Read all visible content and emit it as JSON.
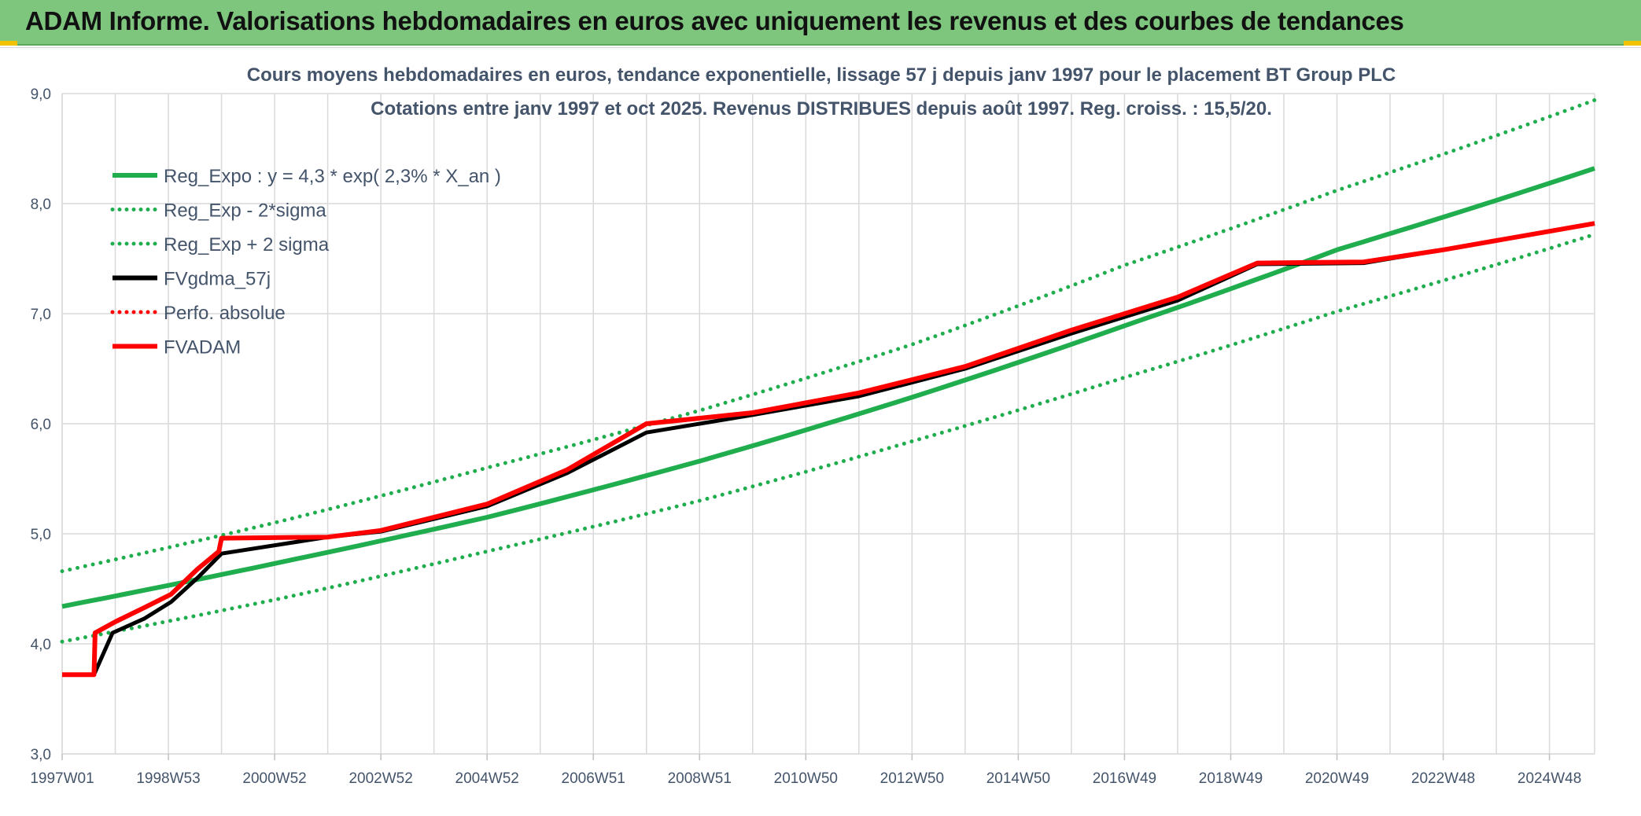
{
  "banner": {
    "title": "ADAM Informe. Valorisations hebdomadaires en euros avec uniquement les revenus et des courbes de tendances"
  },
  "colors": {
    "banner": "#7ec57e",
    "trend": "#1fad4e",
    "price": "#000000",
    "adam": "#ff0000",
    "grid": "#d9d9d9"
  },
  "chart_data": {
    "type": "line",
    "title": "Cours moyens hebdomadaires en euros, tendance exponentielle, lissage 57 j depuis janv 1997 pour le placement BT Group PLC",
    "subtitle": "Cotations entre janv 1997 et oct 2025. Revenus DISTRIBUES depuis août 1997. Reg. croiss. : 15,5/20.",
    "xlabel": "",
    "ylabel": "",
    "ylim": [
      3.0,
      9.0
    ],
    "yticks": [
      "3,0",
      "4,0",
      "5,0",
      "6,0",
      "7,0",
      "8,0",
      "9,0"
    ],
    "xrange": [
      1997.0,
      2025.85
    ],
    "xtick_labels": [
      "1997W01",
      "1998W53",
      "2000W52",
      "2002W52",
      "2004W52",
      "2006W51",
      "2008W51",
      "2010W50",
      "2012W50",
      "2014W50",
      "2016W49",
      "2018W49",
      "2020W49",
      "2022W48",
      "2024W48"
    ],
    "grid": true,
    "legend_position": "top-left",
    "legend": [
      {
        "label": "Reg_Expo : y = 4,3 * exp( 2,3% *  X_an )",
        "color": "#1fad4e",
        "style": "solid"
      },
      {
        "label": "Reg_Exp - 2*sigma",
        "color": "#1fad4e",
        "style": "dotted"
      },
      {
        "label": "Reg_Exp + 2 sigma",
        "color": "#1fad4e",
        "style": "dotted"
      },
      {
        "label": "FVgdma_57j",
        "color": "#000000",
        "style": "solid"
      },
      {
        "label": "Perfo. absolue",
        "color": "#ff0000",
        "style": "dotted"
      },
      {
        "label": "FVADAM",
        "color": "#ff0000",
        "style": "solid"
      }
    ],
    "series": [
      {
        "name": "Reg_Expo : y = 4,3 * exp( 2,3% *  X_an )",
        "x": [
          1997.0,
          2001.0,
          2005.0,
          2009.0,
          2013.0,
          2017.0,
          2021.0,
          2025.85
        ],
        "y": [
          4.34,
          4.73,
          5.15,
          5.66,
          6.24,
          6.89,
          7.58,
          8.32
        ]
      },
      {
        "name": "Reg_Exp - 2*sigma",
        "x": [
          1997.0,
          2001.0,
          2005.0,
          2009.0,
          2013.0,
          2017.0,
          2021.0,
          2025.85
        ],
        "y": [
          4.02,
          4.4,
          4.84,
          5.3,
          5.84,
          6.42,
          7.02,
          7.72
        ]
      },
      {
        "name": "Reg_Exp + 2 sigma",
        "x": [
          1997.0,
          2001.0,
          2005.0,
          2009.0,
          2013.0,
          2017.0,
          2021.0,
          2025.85
        ],
        "y": [
          4.66,
          5.1,
          5.6,
          6.12,
          6.72,
          7.44,
          8.12,
          8.94
        ]
      },
      {
        "name": "FVgdma_57j",
        "x": [
          1997.0,
          1997.6,
          1997.95,
          1998.55,
          1999.05,
          1999.55,
          2000.0,
          2002.0,
          2003.0,
          2005.0,
          2006.5,
          2008.0,
          2010.0,
          2012.0,
          2014.0,
          2016.0,
          2018.0,
          2019.5,
          2021.5,
          2023.0,
          2025.85
        ],
        "y": [
          3.72,
          3.72,
          4.1,
          4.23,
          4.38,
          4.6,
          4.82,
          4.97,
          5.02,
          5.25,
          5.55,
          5.92,
          6.08,
          6.25,
          6.5,
          6.82,
          7.12,
          7.45,
          7.46,
          7.58,
          7.82
        ]
      },
      {
        "name": "FVADAM",
        "x": [
          1997.0,
          1997.6,
          1997.62,
          1998.0,
          1998.55,
          1999.05,
          1999.55,
          1999.95,
          2000.0,
          2002.0,
          2003.0,
          2005.0,
          2006.5,
          2008.0,
          2010.0,
          2012.0,
          2014.0,
          2016.0,
          2018.0,
          2019.5,
          2021.5,
          2023.0,
          2025.85
        ],
        "y": [
          3.72,
          3.72,
          4.1,
          4.2,
          4.33,
          4.45,
          4.68,
          4.84,
          4.96,
          4.97,
          5.03,
          5.27,
          5.58,
          6.0,
          6.1,
          6.28,
          6.52,
          6.85,
          7.15,
          7.46,
          7.47,
          7.58,
          7.82
        ]
      }
    ]
  }
}
